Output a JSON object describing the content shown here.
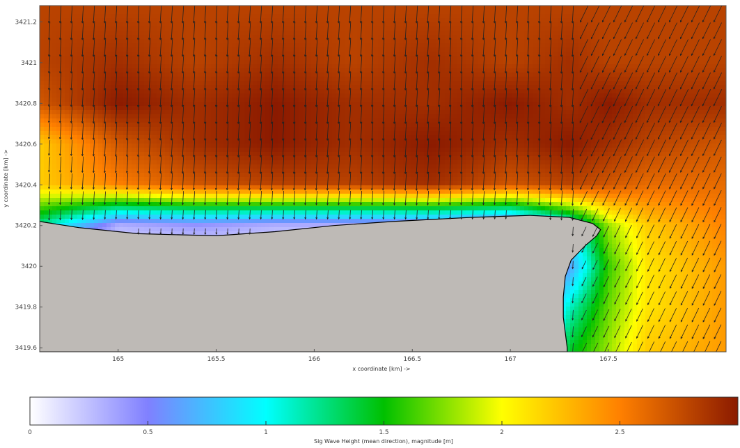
{
  "chart_data": {
    "type": "heatmap",
    "title": "",
    "xlabel": "x coordinate [km] ->",
    "ylabel": "y coordinate [km] ->",
    "x_ticks": [
      "165",
      "165.5",
      "166",
      "166.5",
      "167",
      "167.5"
    ],
    "y_ticks": [
      "3421.2",
      "3421",
      "3420.8",
      "3420.6",
      "3420.4",
      "3420.2",
      "3420",
      "3419.8",
      "3419.6"
    ],
    "xlim": [
      164.6,
      168.1
    ],
    "ylim": [
      3419.58,
      3421.28
    ],
    "colorbar": {
      "label": "Sig Wave Height (mean direction), magnitude [m]",
      "ticks": [
        "0",
        "0.5",
        "1",
        "1.5",
        "2",
        "2.5"
      ],
      "range": [
        0,
        3
      ],
      "colormap": [
        "#ffffff",
        "#8080ff",
        "#00ffff",
        "#00c000",
        "#ffff00",
        "#ff8000",
        "#8b1a00"
      ]
    },
    "overlay": "mean wave direction vectors (arrows)",
    "land_color": "#bebab6",
    "coastline": [
      [
        164.6,
        3420.22
      ],
      [
        164.8,
        3420.19
      ],
      [
        165.1,
        3420.16
      ],
      [
        165.5,
        3420.15
      ],
      [
        165.8,
        3420.17
      ],
      [
        166.1,
        3420.2
      ],
      [
        166.4,
        3420.22
      ],
      [
        166.8,
        3420.24
      ],
      [
        167.1,
        3420.25
      ],
      [
        167.3,
        3420.24
      ],
      [
        167.42,
        3420.21
      ],
      [
        167.46,
        3420.18
      ],
      [
        167.44,
        3420.15
      ],
      [
        167.38,
        3420.1
      ],
      [
        167.31,
        3420.03
      ],
      [
        167.28,
        3419.95
      ],
      [
        167.27,
        3419.85
      ],
      [
        167.27,
        3419.75
      ],
      [
        167.29,
        3419.6
      ]
    ],
    "height_field": {
      "x": [
        164.6,
        165.0,
        165.4,
        165.8,
        166.2,
        166.6,
        167.0,
        167.3,
        167.5,
        167.7,
        168.1
      ],
      "y": [
        3419.6,
        3419.8,
        3420.0,
        3420.2,
        3420.4,
        3420.6,
        3420.8,
        3421.0,
        3421.28
      ],
      "z": [
        [
          0.0,
          0.0,
          0.0,
          0.0,
          0.0,
          0.0,
          0.0,
          1.4,
          1.8,
          2.2,
          2.4
        ],
        [
          0.0,
          0.0,
          0.0,
          0.0,
          0.0,
          0.0,
          0.0,
          1.1,
          1.7,
          2.1,
          2.4
        ],
        [
          0.0,
          0.0,
          0.0,
          0.0,
          0.0,
          0.0,
          0.0,
          0.6,
          1.6,
          2.1,
          2.4
        ],
        [
          1.2,
          0.3,
          0.4,
          0.3,
          0.3,
          0.3,
          0.2,
          0.9,
          1.8,
          2.2,
          2.5
        ],
        [
          2.2,
          2.5,
          2.7,
          2.8,
          2.8,
          2.9,
          2.7,
          2.8,
          2.7,
          2.6,
          2.6
        ],
        [
          2.2,
          2.7,
          2.9,
          3.0,
          2.9,
          3.0,
          2.9,
          3.0,
          2.9,
          2.8,
          2.7
        ],
        [
          2.7,
          3.0,
          2.9,
          3.0,
          2.9,
          2.9,
          3.0,
          2.9,
          3.0,
          2.9,
          2.9
        ],
        [
          2.8,
          2.9,
          2.8,
          2.9,
          2.8,
          2.9,
          2.8,
          2.9,
          2.8,
          2.8,
          2.8
        ],
        [
          2.8,
          2.8,
          2.8,
          2.8,
          2.8,
          2.8,
          2.8,
          2.8,
          2.8,
          2.8,
          2.8
        ]
      ]
    }
  }
}
